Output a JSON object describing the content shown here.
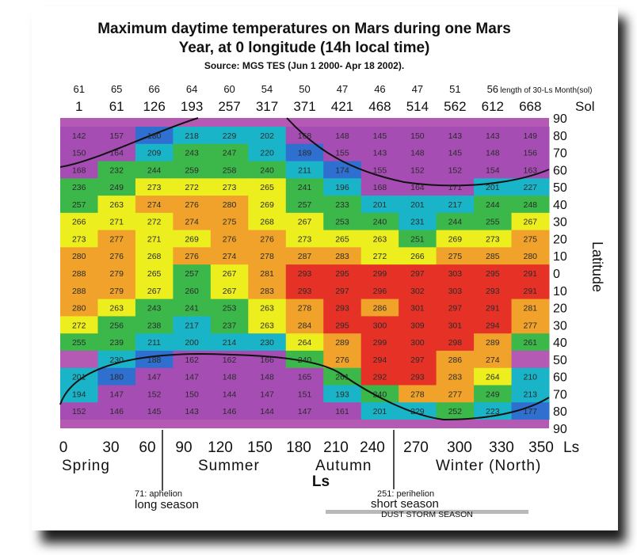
{
  "chart_data": {
    "type": "heatmap",
    "title": "Maximum daytime temperatures on Mars during one Mars Year, at 0 longitude (14h local time)",
    "title_lines": [
      "Maximum daytime temperatures on Mars during one Mars",
      "Year, at 0 longitude (14h local time)"
    ],
    "subtitle": "Source: MGS TES (Jun 1 2000- Apr 18 2002).",
    "month_length_label": "length of 30-Ls Month(sol)",
    "month_lengths": [
      "61",
      "65",
      "66",
      "64",
      "60",
      "54",
      "50",
      "47",
      "46",
      "47",
      "51",
      "56"
    ],
    "sol_label": "Sol",
    "sols": [
      "1",
      "61",
      "126",
      "193",
      "257",
      "317",
      "371",
      "421",
      "468",
      "514",
      "562",
      "612",
      "668"
    ],
    "latitude_label": "Latitude",
    "lat_ticks": [
      "90",
      "80",
      "70",
      "60",
      "50",
      "40",
      "30",
      "20",
      "10",
      "0",
      "10",
      "20",
      "30",
      "40",
      "50",
      "60",
      "70",
      "80",
      "90"
    ],
    "ls_ticks": [
      "0",
      "30",
      "60",
      "90",
      "120",
      "150",
      "180",
      "210",
      "240",
      "270",
      "300",
      "330",
      "350"
    ],
    "ls_unit": "Ls",
    "xlabel": "Ls",
    "seasons": [
      "Spring",
      "Summer",
      "Autumn",
      "Winter (North)"
    ],
    "annotations": [
      {
        "lines": [
          "71: aphelion",
          "long season"
        ],
        "ls": 71
      },
      {
        "lines": [
          "251: perihelion",
          "short season"
        ],
        "ls": 251
      }
    ],
    "dust_storm_label": "DUST STORM SEASON",
    "rows": [
      [
        "142",
        "157",
        "180",
        "218",
        "229",
        "202",
        "168",
        "148",
        "145",
        "150",
        "143",
        "143",
        "149"
      ],
      [
        "150",
        "164",
        "209",
        "243",
        "247",
        "220",
        "189",
        "155",
        "143",
        "148",
        "145",
        "148",
        "156"
      ],
      [
        "168",
        "232",
        "244",
        "259",
        "258",
        "240",
        "211",
        "174",
        "155",
        "152",
        "152",
        "154",
        "163"
      ],
      [
        "236",
        "249",
        "273",
        "272",
        "273",
        "265",
        "241",
        "196",
        "168",
        "164",
        "171",
        "201",
        "227"
      ],
      [
        "257",
        "263",
        "274",
        "276",
        "280",
        "269",
        "257",
        "233",
        "201",
        "201",
        "217",
        "244",
        "248"
      ],
      [
        "266",
        "271",
        "272",
        "274",
        "275",
        "268",
        "267",
        "253",
        "240",
        "231",
        "244",
        "255",
        "267"
      ],
      [
        "273",
        "277",
        "271",
        "269",
        "276",
        "276",
        "273",
        "265",
        "263",
        "251",
        "269",
        "273",
        "275"
      ],
      [
        "280",
        "276",
        "268",
        "276",
        "274",
        "278",
        "287",
        "283",
        "272",
        "266",
        "275",
        "285",
        "280"
      ],
      [
        "288",
        "279",
        "265",
        "257",
        "267",
        "281",
        "293",
        "295",
        "299",
        "297",
        "303",
        "295",
        "291"
      ],
      [
        "288",
        "279",
        "267",
        "260",
        "267",
        "283",
        "293",
        "297",
        "296",
        "302",
        "303",
        "293",
        "291"
      ],
      [
        "280",
        "263",
        "243",
        "241",
        "253",
        "263",
        "278",
        "293",
        "286",
        "301",
        "297",
        "291",
        "281"
      ],
      [
        "272",
        "256",
        "238",
        "217",
        "237",
        "263",
        "284",
        "295",
        "300",
        "309",
        "301",
        "294",
        "277"
      ],
      [
        "255",
        "239",
        "211",
        "200",
        "214",
        "230",
        "264",
        "289",
        "299",
        "300",
        "298",
        "289",
        "261"
      ],
      [
        "",
        "230",
        "188",
        "162",
        "162",
        "166",
        "240",
        "276",
        "294",
        "297",
        "286",
        "274",
        ""
      ],
      [
        "201",
        "180",
        "147",
        "147",
        "148",
        "148",
        "165",
        "261",
        "292",
        "293",
        "283",
        "264",
        "210"
      ],
      [
        "194",
        "147",
        "152",
        "150",
        "144",
        "147",
        "151",
        "193",
        "240",
        "278",
        "277",
        "249",
        "213"
      ],
      [
        "152",
        "146",
        "145",
        "143",
        "146",
        "144",
        "147",
        "161",
        "201",
        "229",
        "252",
        "223",
        "177"
      ]
    ],
    "colors": {
      "low": "#a64db4",
      "blue": "#2e6fd0",
      "cyan": "#1ab4c8",
      "green": "#3cb84a",
      "yellow": "#ecee1e",
      "orange": "#f0a22a",
      "red": "#e63226",
      "edge": "#b45ab4"
    }
  }
}
